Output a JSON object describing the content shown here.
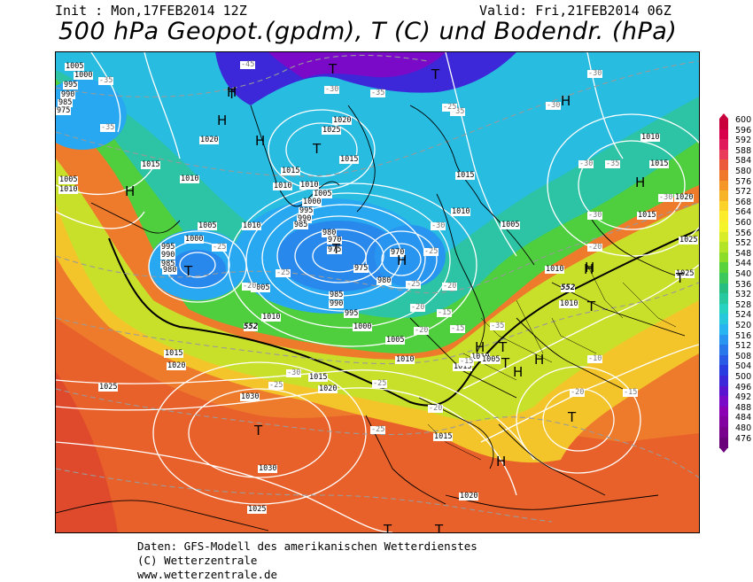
{
  "header": {
    "init": "Init : Mon,17FEB2014 12Z",
    "valid": "Valid: Fri,21FEB2014 06Z",
    "title": "500 hPa Geopot.(gpdm), T (C) und Bodendr. (hPa)"
  },
  "footer": {
    "line1": "Daten: GFS-Modell des amerikanischen Wetterdienstes",
    "line2": "(C) Wetterzentrale",
    "line3": "www.wetterzentrale.de"
  },
  "legend": {
    "values": [
      "600",
      "596",
      "592",
      "588",
      "584",
      "580",
      "576",
      "572",
      "568",
      "564",
      "560",
      "556",
      "552",
      "548",
      "544",
      "540",
      "536",
      "532",
      "528",
      "524",
      "520",
      "516",
      "512",
      "508",
      "504",
      "500",
      "496",
      "492",
      "488",
      "484",
      "480",
      "476"
    ],
    "colors": [
      "#c8003c",
      "#d8004a",
      "#e0195a",
      "#e83c5a",
      "#ec5a3c",
      "#f0782a",
      "#f49628",
      "#f8b428",
      "#fad22a",
      "#fcec2c",
      "#f4f428",
      "#d8ec28",
      "#b4e428",
      "#8cdc28",
      "#5ad23c",
      "#3cc85a",
      "#28be82",
      "#28c8a0",
      "#28d2c0",
      "#28c8dc",
      "#28b4f0",
      "#2896f0",
      "#2878ec",
      "#285ae6",
      "#283ce0",
      "#3c28d8",
      "#5a14d0",
      "#7a0ac8",
      "#8c00b4",
      "#8200a0",
      "#78008c",
      "#6a007a"
    ]
  },
  "map_labels": {
    "pressure": [
      "1005",
      "1000",
      "995",
      "990",
      "985",
      "975",
      "1020",
      "1015",
      "1010",
      "1010",
      "1005",
      "1005",
      "1010",
      "1020",
      "1025",
      "1015",
      "1010",
      "1015",
      "1010",
      "1005",
      "1000",
      "995",
      "990",
      "985",
      "980",
      "975",
      "970",
      "1000",
      "995",
      "990",
      "985",
      "980",
      "1005",
      "1010",
      "975",
      "985",
      "990",
      "995",
      "1000",
      "970",
      "980",
      "1005",
      "1010",
      "1015",
      "1020",
      "1015",
      "1010",
      "1005",
      "1015",
      "1020",
      "1025",
      "1010",
      "1015",
      "1020",
      "1025",
      "1030",
      "1030",
      "1025",
      "1020",
      "1015",
      "1010",
      "1005",
      "1015",
      "1010",
      "1010",
      "1015",
      "1020",
      "1025"
    ],
    "temperature": [
      "-45",
      "-35",
      "-30",
      "-35",
      "-35",
      "-30",
      "-35",
      "-25",
      "-30",
      "-30",
      "-25",
      "-30",
      "-25",
      "-20",
      "-25",
      "-20",
      "-15",
      "-20",
      "-15",
      "-25",
      "-20",
      "-15",
      "-10",
      "-20",
      "-15",
      "-20",
      "-30",
      "-25",
      "-25",
      "-35",
      "-30",
      "-25",
      "-20",
      "-35",
      "-30"
    ],
    "contour_552": "552",
    "highs_lows": [
      "T",
      "T",
      "H",
      "H",
      "T",
      "H",
      "H",
      "H",
      "T",
      "T",
      "T",
      "H",
      "H",
      "H",
      "H",
      "T",
      "T",
      "T",
      "H",
      "T",
      "H",
      "T",
      "T",
      "H",
      "H",
      "T",
      "T"
    ]
  }
}
